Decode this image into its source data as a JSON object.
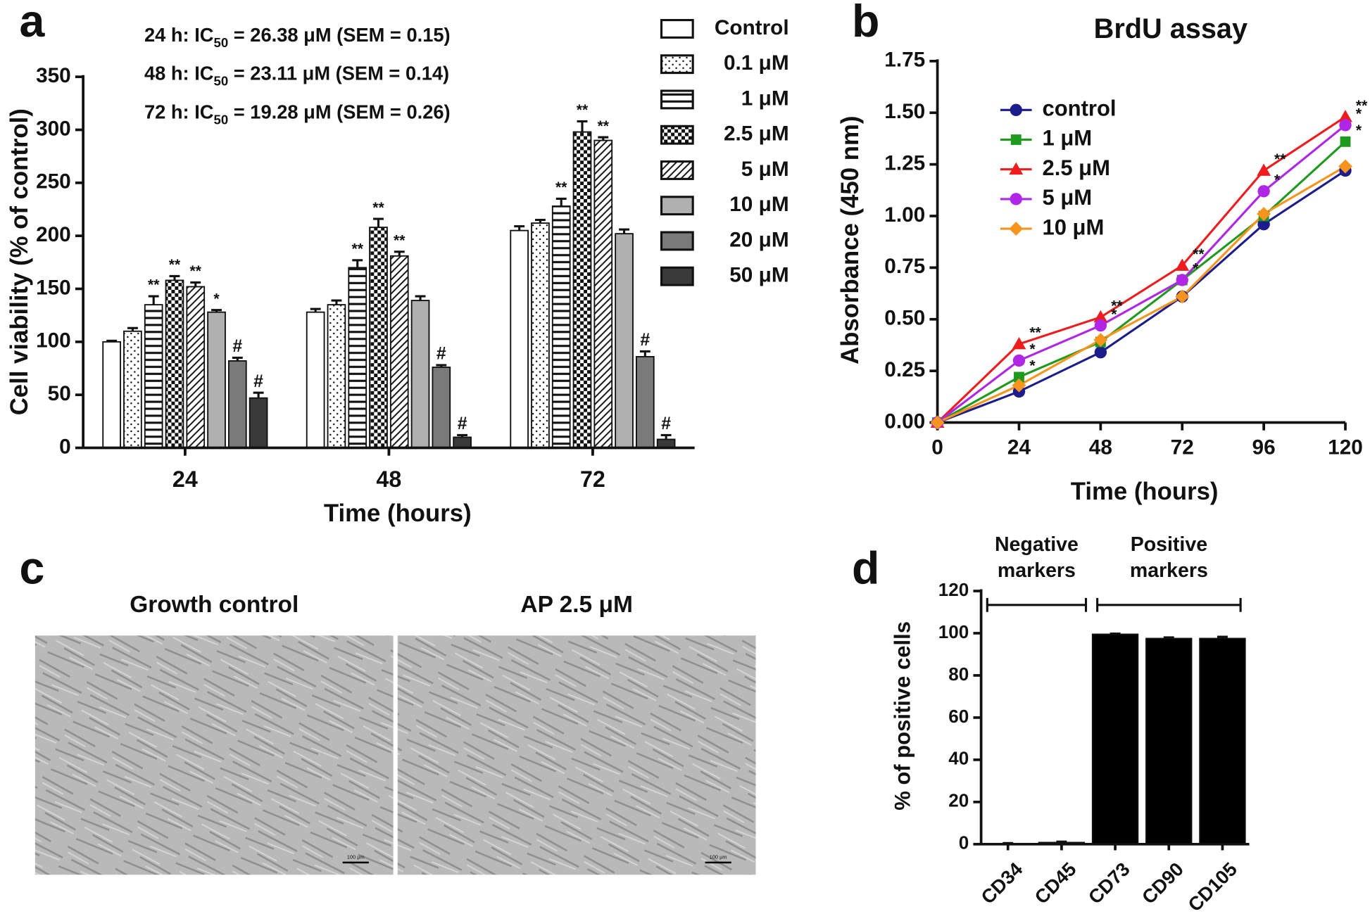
{
  "chart_data": [
    {
      "type": "bar",
      "label": "a",
      "xlabel": "Time (hours)",
      "ylabel": "Cell viability (% of control)",
      "annotations": [
        {
          "prefix": "24 h: IC",
          "sub": "50",
          "suffix": " = 26.38 μM (SEM = 0.15)"
        },
        {
          "prefix": "48 h: IC",
          "sub": "50",
          "suffix": " = 23.11 μM (SEM = 0.14)"
        },
        {
          "prefix": "72 h: IC",
          "sub": "50",
          "suffix": " = 19.28 μM (SEM = 0.26)"
        }
      ],
      "categories": [
        "24",
        "48",
        "72"
      ],
      "ylim": [
        0,
        350
      ],
      "yticks": [
        0,
        50,
        100,
        150,
        200,
        250,
        300,
        350
      ],
      "legend": "right",
      "series": [
        {
          "name": "Control",
          "color": "#ffffff",
          "pattern": "none",
          "values": [
            100,
            128,
            205
          ],
          "errors": [
            1,
            3,
            4
          ],
          "marks": [
            null,
            null,
            null
          ]
        },
        {
          "name": "0.1 μM",
          "color": "#ffffff",
          "pattern": "dots",
          "values": [
            110,
            135,
            212
          ],
          "errors": [
            3,
            4,
            3
          ],
          "marks": [
            null,
            null,
            null
          ]
        },
        {
          "name": "1 μM",
          "color": "#ffffff",
          "pattern": "hlines",
          "values": [
            135,
            170,
            228
          ],
          "errors": [
            8,
            7,
            7
          ],
          "marks": [
            "**",
            "**",
            "**"
          ]
        },
        {
          "name": "2.5 μM",
          "color": "#ffffff",
          "pattern": "checker",
          "values": [
            158,
            208,
            298
          ],
          "errors": [
            4,
            8,
            10
          ],
          "marks": [
            "**",
            "**",
            "**"
          ]
        },
        {
          "name": "5 μM",
          "color": "#ffffff",
          "pattern": "diagonal",
          "values": [
            152,
            181,
            290
          ],
          "errors": [
            4,
            4,
            3
          ],
          "marks": [
            "**",
            "**",
            "**"
          ]
        },
        {
          "name": "10 μM",
          "color": "#b0b0b0",
          "pattern": "none",
          "values": [
            128,
            139,
            202
          ],
          "errors": [
            2,
            4,
            4
          ],
          "marks": [
            "*",
            null,
            null
          ]
        },
        {
          "name": "20 μM",
          "color": "#7a7a7a",
          "pattern": "none",
          "values": [
            82,
            76,
            86
          ],
          "errors": [
            3,
            2,
            5
          ],
          "marks": [
            "#",
            "#",
            "#"
          ]
        },
        {
          "name": "50 μM",
          "color": "#3a3a3a",
          "pattern": "none",
          "values": [
            47,
            10,
            8
          ],
          "errors": [
            5,
            2,
            4
          ],
          "marks": [
            "#",
            "#",
            "#"
          ]
        }
      ]
    },
    {
      "type": "line",
      "label": "b",
      "title": "BrdU assay",
      "xlabel": "Time (hours)",
      "ylabel": "Absorbance (450 nm)",
      "x": [
        0,
        24,
        48,
        72,
        96,
        120
      ],
      "xlim": [
        0,
        120
      ],
      "xticks": [
        0,
        24,
        48,
        72,
        96,
        120
      ],
      "ylim": [
        0,
        1.75
      ],
      "yticks": [
        {
          "value": 0,
          "label": "0.00"
        },
        {
          "value": 0.25,
          "label": "0.25"
        },
        {
          "value": 0.5,
          "label": "0.50"
        },
        {
          "value": 0.75,
          "label": "0.75"
        },
        {
          "value": 1,
          "label": "1.00"
        },
        {
          "value": 1.25,
          "label": "1.25"
        },
        {
          "value": 1.5,
          "label": "1.50"
        },
        {
          "value": 1.75,
          "label": "1.75"
        }
      ],
      "legend": "upper left",
      "series": [
        {
          "name": "control",
          "color": "#1c1c8c",
          "marker": "circle",
          "values": [
            0,
            0.15,
            0.34,
            0.61,
            0.96,
            1.22
          ],
          "marks": [
            null,
            null,
            null,
            null,
            null,
            null
          ]
        },
        {
          "name": "1 μM",
          "color": "#1f9a1f",
          "marker": "square",
          "values": [
            0,
            0.22,
            0.39,
            0.69,
            1.0,
            1.36
          ],
          "marks": [
            null,
            "*",
            null,
            null,
            null,
            "*"
          ]
        },
        {
          "name": "2.5 μM",
          "color": "#ee1c1c",
          "marker": "triangle",
          "values": [
            0,
            0.38,
            0.51,
            0.76,
            1.22,
            1.48
          ],
          "marks": [
            null,
            "**",
            "**",
            "**",
            "**",
            "**"
          ]
        },
        {
          "name": "5 μM",
          "color": "#b026e6",
          "marker": "circle",
          "values": [
            0,
            0.3,
            0.47,
            0.69,
            1.12,
            1.44
          ],
          "marks": [
            null,
            "*",
            "*",
            "*",
            "*",
            "*"
          ]
        },
        {
          "name": "10 μM",
          "color": "#f7941d",
          "marker": "diamond",
          "values": [
            0,
            0.18,
            0.4,
            0.61,
            1.01,
            1.24
          ],
          "marks": [
            null,
            null,
            null,
            null,
            null,
            null
          ]
        }
      ]
    },
    {
      "type": "images",
      "label": "c",
      "titles": [
        "Growth control",
        "AP 2.5 μM"
      ],
      "scale_bar": "100 μm"
    },
    {
      "type": "bar",
      "label": "d",
      "ylabel": "% of positive cells",
      "groups": [
        {
          "label": [
            "Negative",
            "markers"
          ]
        },
        {
          "label": [
            "Positive",
            "markers"
          ]
        }
      ],
      "categories": [
        "CD34",
        "CD45",
        "CD73",
        "CD90",
        "CD105"
      ],
      "values": [
        0.3,
        0.8,
        99.5,
        97.5,
        97.5
      ],
      "errors": [
        0.2,
        0.4,
        0.3,
        0.5,
        0.8
      ],
      "color": "#000000",
      "ylim": [
        0,
        120
      ],
      "yticks": [
        0,
        20,
        40,
        60,
        80,
        100,
        120
      ]
    }
  ]
}
